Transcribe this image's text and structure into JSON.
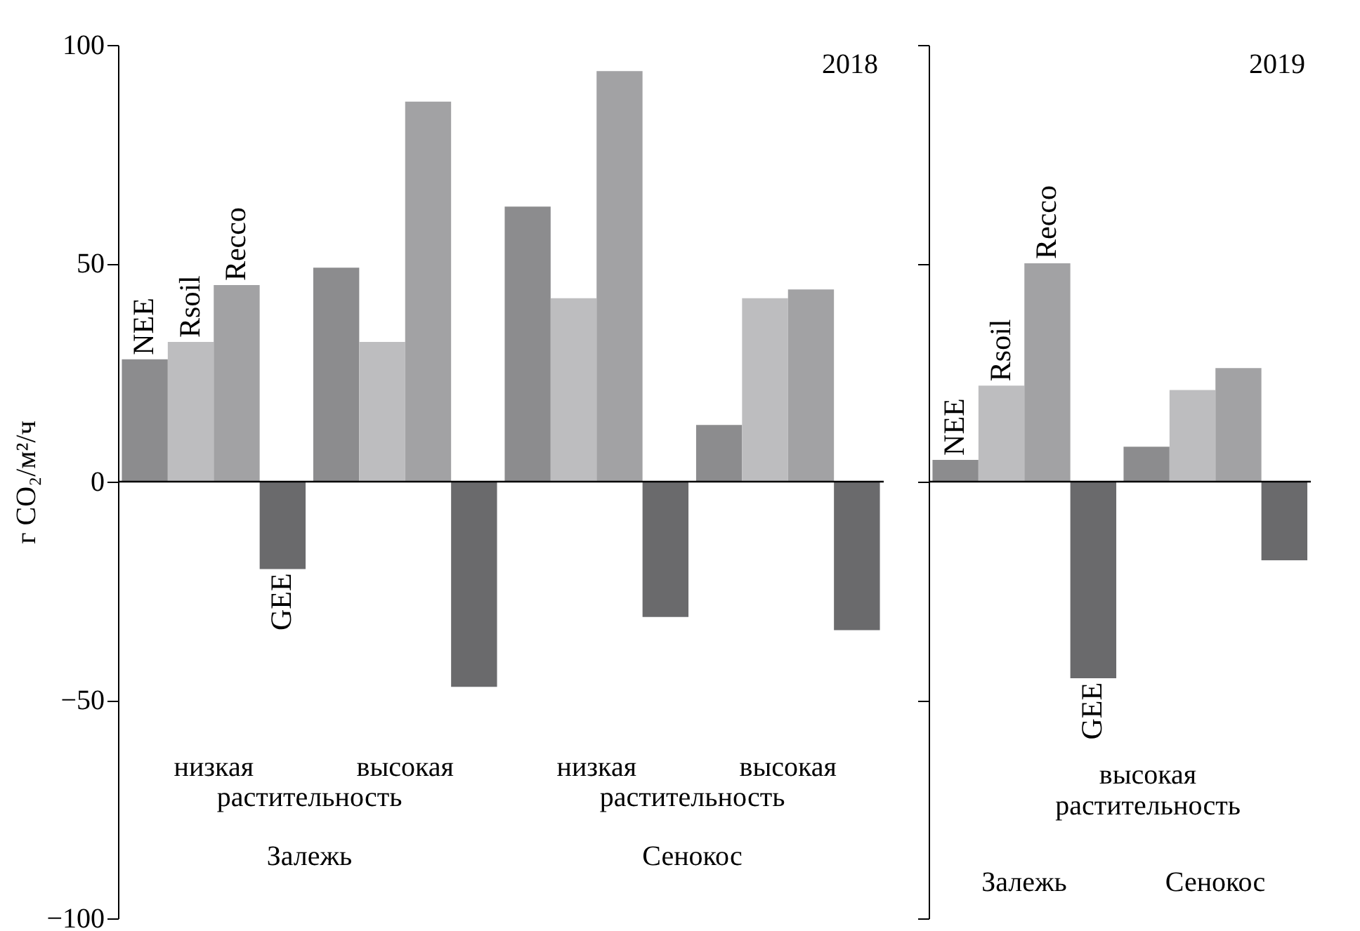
{
  "chart_data": [
    {
      "type": "bar",
      "title": "2018",
      "ylabel": "г CO₂/м²/ч",
      "categories": [
        "низкая",
        "высокая",
        "низкая",
        "высокая"
      ],
      "series": [
        {
          "name": "NEE",
          "color": "#8c8c8e",
          "values": [
            28,
            49,
            63,
            13
          ]
        },
        {
          "name": "Rsoil",
          "color": "#bdbdbf",
          "values": [
            32,
            32,
            42,
            42
          ]
        },
        {
          "name": "Recco",
          "color": "#a2a2a4",
          "values": [
            45,
            87,
            94,
            44
          ]
        },
        {
          "name": "GEE",
          "color": "#6a6a6c",
          "values": [
            -20,
            -47,
            -31,
            -34
          ]
        }
      ],
      "ylim": [
        -100,
        100
      ],
      "yticks": [
        -100,
        -50,
        0,
        50,
        100
      ],
      "ref_lines": [
        {
          "axis": "y",
          "value": 0
        }
      ],
      "annotations": [
        "растительность",
        "растительность",
        "Залежь",
        "Сенокос"
      ]
    },
    {
      "type": "bar",
      "title": "2019",
      "categories": [
        "Залежь",
        "Сенокос"
      ],
      "series": [
        {
          "name": "NEE",
          "color": "#8c8c8e",
          "values": [
            5,
            8
          ]
        },
        {
          "name": "Rsoil",
          "color": "#bdbdbf",
          "values": [
            22,
            21
          ]
        },
        {
          "name": "Recco",
          "color": "#a2a2a4",
          "values": [
            50,
            26
          ]
        },
        {
          "name": "GEE",
          "color": "#6a6a6c",
          "values": [
            -45,
            -18
          ]
        }
      ],
      "ylim": [
        -100,
        100
      ],
      "yticks": [
        -100,
        -50,
        0,
        50,
        100
      ],
      "tick_labels": "x",
      "ref_lines": [
        {
          "axis": "y",
          "value": 0
        }
      ],
      "annotations": [
        "высокая растительность"
      ]
    }
  ]
}
